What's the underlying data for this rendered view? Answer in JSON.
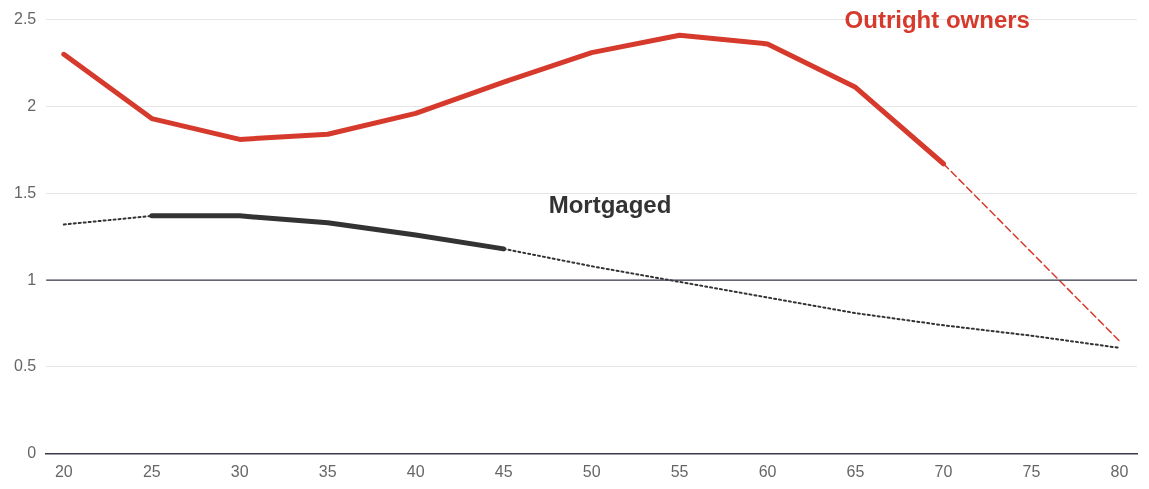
{
  "chart_data": {
    "type": "line",
    "xlim": [
      19,
      81
    ],
    "xticks": [
      20,
      25,
      30,
      35,
      40,
      45,
      50,
      55,
      60,
      65,
      70,
      75,
      80
    ],
    "ylim": [
      0,
      2.5
    ],
    "yticks": [
      0,
      0.5,
      1,
      1.5,
      2,
      2.5
    ],
    "grid": "y",
    "legend": false,
    "marker": "none",
    "series": [
      {
        "name": "Outright owners",
        "color": "#d63a2c",
        "line_style": "solid",
        "x": [
          20,
          25,
          30,
          35,
          40,
          45,
          50,
          55,
          60,
          65,
          70
        ],
        "values": [
          2.3,
          1.93,
          1.81,
          1.84,
          1.96,
          2.14,
          2.31,
          2.41,
          2.36,
          2.11,
          1.67
        ]
      },
      {
        "color": "#d63a2c",
        "line_style": "dashed",
        "x": [
          70,
          80
        ],
        "values": [
          1.67,
          0.65
        ]
      },
      {
        "name": "Mortgaged",
        "color": "#333333",
        "line_style": "solid",
        "x": [
          25,
          30,
          35,
          40,
          45
        ],
        "values": [
          1.37,
          1.37,
          1.33,
          1.26,
          1.18
        ]
      },
      {
        "color": "#333333",
        "line_style": "dotted",
        "x": [
          20,
          25
        ],
        "values": [
          1.32,
          1.37
        ]
      },
      {
        "color": "#333333",
        "line_style": "dotted",
        "x": [
          45,
          50,
          55,
          60,
          65,
          70,
          75,
          80
        ],
        "values": [
          1.18,
          1.08,
          0.99,
          0.9,
          0.81,
          0.74,
          0.68,
          0.61
        ]
      }
    ],
    "ref_lines": [
      {
        "axis": "y",
        "value": 1,
        "color": "#3a3a4a"
      }
    ]
  }
}
